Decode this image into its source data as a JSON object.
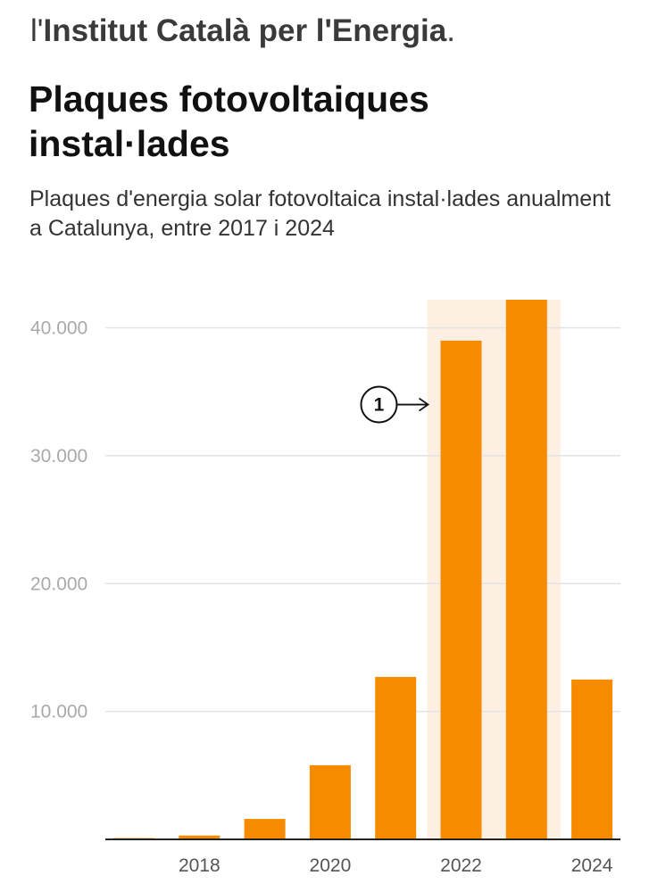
{
  "header": {
    "source_prefix": "l'",
    "source_name": "Institut Català per l'Energia",
    "source_suffix": ".",
    "title": "Plaques fotovoltaiques instal·lades",
    "subtitle": "Plaques d'energia solar fotovoltaica instal·lades anualment a Catalunya, entre 2017 i 2024"
  },
  "chart_data": {
    "type": "bar",
    "title": "Plaques fotovoltaiques instal·lades",
    "subtitle": "Plaques d'energia solar fotovoltaica instal·lades anualment a Catalunya, entre 2017 i 2024",
    "xlabel": "",
    "ylabel": "",
    "categories": [
      2017,
      2018,
      2019,
      2020,
      2021,
      2022,
      2023,
      2024
    ],
    "values": [
      100,
      300,
      1600,
      5800,
      12700,
      39000,
      42200,
      12500
    ],
    "ylim": [
      0,
      42200
    ],
    "y_ticks": [
      10000,
      20000,
      30000,
      40000
    ],
    "y_tick_labels": [
      "10.000",
      "20.000",
      "30.000",
      "40.000"
    ],
    "x_tick_labels": [
      {
        "category": 2018,
        "label": "2018"
      },
      {
        "category": 2020,
        "label": "2020"
      },
      {
        "category": 2022,
        "label": "2022"
      },
      {
        "category": 2024,
        "label": "2024"
      }
    ],
    "grid": true,
    "bar_color": "#f68b00",
    "highlight": {
      "from": 2022,
      "to": 2023,
      "color": "#fdf0e2"
    },
    "annotations": [
      {
        "label": "1",
        "category": 2022,
        "value": 34000
      }
    ]
  }
}
